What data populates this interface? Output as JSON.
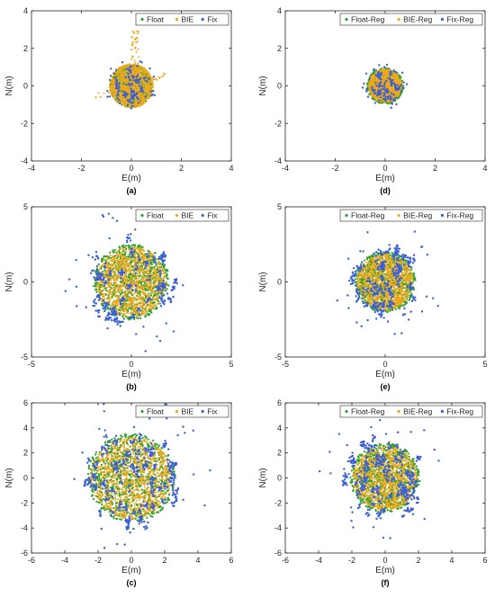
{
  "colors": {
    "float": "#2ca02c",
    "bie": "#f0a81c",
    "fix": "#3a5fd8",
    "axis": "#262626"
  },
  "chart_data": [
    {
      "type": "scatter",
      "panel": "(a)",
      "xlabel": "E(m)",
      "ylabel": "N(m)",
      "xlim": [
        -4,
        4
      ],
      "ylim": [
        -4,
        4
      ],
      "xticks": [
        -4,
        -2,
        0,
        2,
        4
      ],
      "yticks": [
        -4,
        -2,
        0,
        2,
        4
      ],
      "legend_placement": "top-right",
      "grid": false,
      "series": [
        {
          "name": "Float",
          "color": "#2ca02c",
          "spread": 0.45
        },
        {
          "name": "BIE",
          "color": "#f0a81c",
          "spread": 0.5
        },
        {
          "name": "Fix",
          "color": "#3a5fd8",
          "spread": 0.35
        }
      ]
    },
    {
      "type": "scatter",
      "panel": "(b)",
      "xlabel": "E(m)",
      "ylabel": "N(m)",
      "xlim": [
        -5,
        5
      ],
      "ylim": [
        -5,
        5
      ],
      "xticks": [
        -5,
        0,
        5
      ],
      "yticks": [
        -5,
        0,
        5
      ],
      "legend_placement": "top-right",
      "grid": false,
      "series": [
        {
          "name": "Float",
          "color": "#2ca02c",
          "spread": 1.0
        },
        {
          "name": "BIE",
          "color": "#f0a81c",
          "spread": 1.0
        },
        {
          "name": "Fix",
          "color": "#3a5fd8",
          "spread": 1.2
        }
      ]
    },
    {
      "type": "scatter",
      "panel": "(c)",
      "xlabel": "E(m)",
      "ylabel": "N(m)",
      "xlim": [
        -6,
        6
      ],
      "ylim": [
        -6,
        6
      ],
      "xticks": [
        -6,
        -4,
        -2,
        0,
        2,
        4,
        6
      ],
      "yticks": [
        -6,
        -4,
        -2,
        0,
        2,
        4,
        6
      ],
      "legend_placement": "top-right",
      "grid": false,
      "series": [
        {
          "name": "Float",
          "color": "#2ca02c",
          "spread": 1.4
        },
        {
          "name": "BIE",
          "color": "#f0a81c",
          "spread": 1.4
        },
        {
          "name": "Fix",
          "color": "#3a5fd8",
          "spread": 1.6
        }
      ]
    },
    {
      "type": "scatter",
      "panel": "(d)",
      "xlabel": "E(m)",
      "ylabel": "N(m)",
      "xlim": [
        -4,
        4
      ],
      "ylim": [
        -4,
        4
      ],
      "xticks": [
        -4,
        -2,
        0,
        2,
        4
      ],
      "yticks": [
        -4,
        -2,
        0,
        2,
        4
      ],
      "legend_placement": "top-right",
      "grid": false,
      "series": [
        {
          "name": "Float-Reg",
          "color": "#2ca02c",
          "spread": 0.38
        },
        {
          "name": "BIE-Reg",
          "color": "#f0a81c",
          "spread": 0.38
        },
        {
          "name": "Fix-Reg",
          "color": "#3a5fd8",
          "spread": 0.3
        }
      ]
    },
    {
      "type": "scatter",
      "panel": "(e)",
      "xlabel": "E(m)",
      "ylabel": "N(m)",
      "xlim": [
        -5,
        5
      ],
      "ylim": [
        -5,
        5
      ],
      "xticks": [
        -5,
        0,
        5
      ],
      "yticks": [
        -5,
        0,
        5
      ],
      "legend_placement": "top-right",
      "grid": false,
      "series": [
        {
          "name": "Float-Reg",
          "color": "#2ca02c",
          "spread": 0.8
        },
        {
          "name": "BIE-Reg",
          "color": "#f0a81c",
          "spread": 0.8
        },
        {
          "name": "Fix-Reg",
          "color": "#3a5fd8",
          "spread": 0.95
        }
      ]
    },
    {
      "type": "scatter",
      "panel": "(f)",
      "xlabel": "E(m)",
      "ylabel": "N(m)",
      "xlim": [
        -6,
        6
      ],
      "ylim": [
        -6,
        6
      ],
      "xticks": [
        -6,
        -4,
        -2,
        0,
        2,
        4,
        6
      ],
      "yticks": [
        -6,
        -4,
        -2,
        0,
        2,
        4,
        6
      ],
      "legend_placement": "top-right",
      "grid": false,
      "series": [
        {
          "name": "Float-Reg",
          "color": "#2ca02c",
          "spread": 1.1
        },
        {
          "name": "BIE-Reg",
          "color": "#f0a81c",
          "spread": 1.1
        },
        {
          "name": "Fix-Reg",
          "color": "#3a5fd8",
          "spread": 1.3
        }
      ]
    }
  ]
}
